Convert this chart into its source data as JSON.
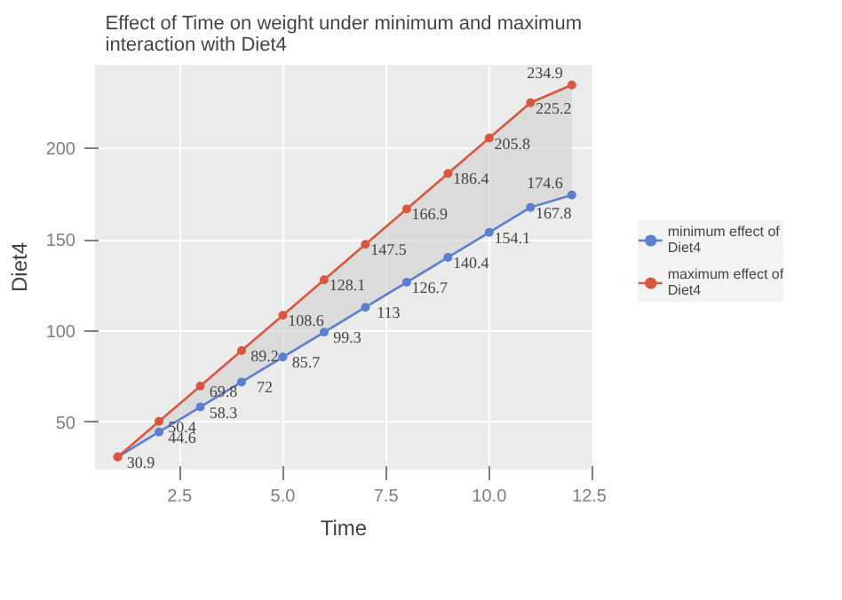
{
  "chart_data": {
    "type": "line",
    "title": "Effect of Time on weight under minimum and maximum\ninteraction with Diet4",
    "xlabel": "Time",
    "ylabel": "Diet4",
    "x": [
      1,
      2,
      3,
      4,
      5,
      6,
      7,
      8,
      9,
      10,
      11,
      12
    ],
    "series": [
      {
        "name": "minimum effect of\nDiet4",
        "color": "#5b7fd1",
        "values": [
          30.9,
          44.6,
          58.3,
          72,
          85.7,
          99.3,
          113,
          126.7,
          140.4,
          154.1,
          167.8,
          174.6
        ],
        "value_labels": [
          "30.9",
          "44.6",
          "58.3",
          "72",
          "85.7",
          "99.3",
          "113",
          "126.7",
          "140.4",
          "154.1",
          "167.8",
          "174.6"
        ]
      },
      {
        "name": "maximum effect of\nDiet4",
        "color": "#d9563f",
        "values": [
          30.9,
          50.4,
          69.8,
          89.2,
          108.6,
          128.1,
          147.5,
          166.9,
          186.4,
          205.8,
          225.2,
          234.9
        ],
        "value_labels": [
          null,
          "50.4",
          "69.8",
          "89.2",
          "108.6",
          "128.1",
          "147.5",
          "166.9",
          "186.4",
          "205.8",
          "225.2",
          "234.9"
        ],
        "lower": [
          30.9,
          44.6,
          58.3,
          72,
          85.7,
          99.3,
          113,
          126.7,
          140.4,
          154.1,
          167.8,
          174.6
        ],
        "upper": [
          30.9,
          50.4,
          69.8,
          89.2,
          108.6,
          128.1,
          147.5,
          166.9,
          186.4,
          205.8,
          225.2,
          234.9
        ]
      }
    ],
    "xlim": [
      0.45,
      12.5
    ],
    "ylim": [
      24,
      246
    ],
    "xticks": [
      2.5,
      {
        "value": 5,
        "label": "5.0"
      },
      {
        "value": 7.5,
        "label": "7.5"
      },
      {
        "value": 10,
        "label": "10.0"
      },
      12.5
    ],
    "yticks": [
      50,
      100,
      150,
      200
    ],
    "grid": true,
    "legend": "right",
    "marker": "circle",
    "line_style": "solid"
  }
}
